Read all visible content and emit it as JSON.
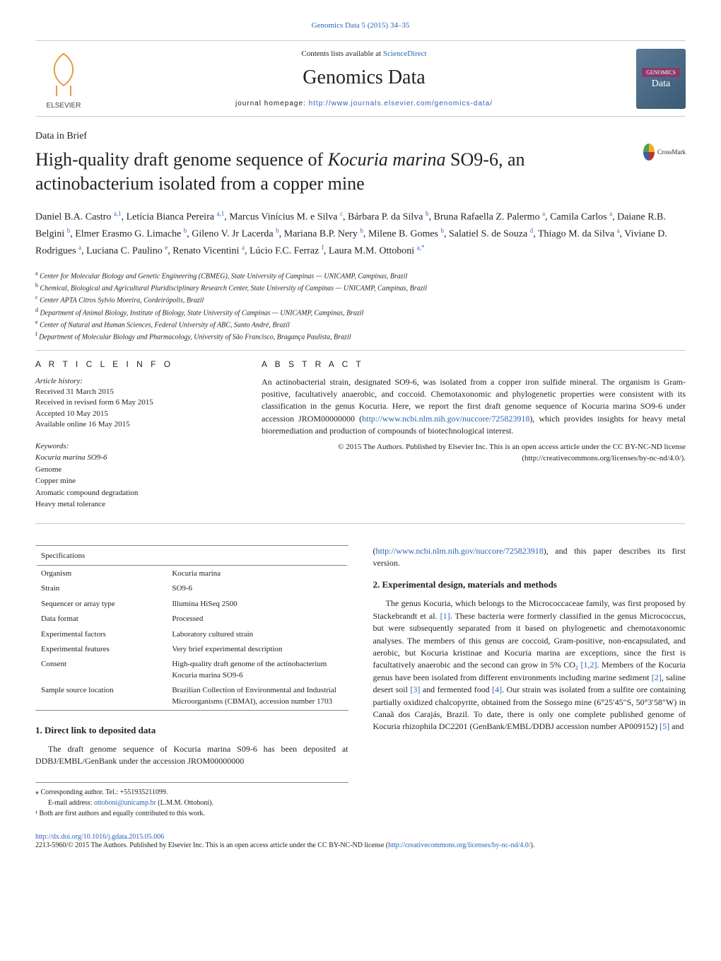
{
  "journal_ref": "Genomics Data 5 (2015) 34–35",
  "header": {
    "contents_prefix": "Contents lists available at ",
    "contents_link": "ScienceDirect",
    "journal_name": "Genomics Data",
    "homepage_prefix": "journal homepage: ",
    "homepage_url": "http://www.journals.elsevier.com/genomics-data/",
    "badge_top": "GENOMICS",
    "badge_bottom": "Data",
    "crossmark_label": "CrossMark"
  },
  "elsevier_colors": {
    "tree": "#e89b3f",
    "text": "#404248"
  },
  "article": {
    "type": "Data in Brief",
    "title_pre": "High-quality draft genome sequence of ",
    "title_species": "Kocuria marina",
    "title_post": " SO9-6, an actinobacterium isolated from a copper mine"
  },
  "authors_html": "Daniel B.A. Castro <sup>a,1</sup>, Letícia Bianca Pereira <sup>a,1</sup>, Marcus Vinícius M. e Silva <sup>c</sup>, Bárbara P. da Silva <sup>b</sup>, Bruna Rafaella Z. Palermo <sup>a</sup>, Camila Carlos <sup>a</sup>, Daiane R.B. Belgini <sup>b</sup>, Elmer Erasmo G. Limache <sup>b</sup>, Gileno V. Jr Lacerda <sup>b</sup>, Mariana B.P. Nery <sup>b</sup>, Milene B. Gomes <sup>b</sup>, Salatiel S. de Souza <sup>d</sup>, Thiago M. da Silva <sup>a</sup>, Viviane D. Rodrigues <sup>a</sup>, Luciana C. Paulino <sup>e</sup>, Renato Vicentini <sup>a</sup>, Lúcio F.C. Ferraz <sup>f</sup>, Laura M.M. Ottoboni <sup>a,*</sup>",
  "affiliations": [
    {
      "sup": "a",
      "text": "Center for Molecular Biology and Genetic Engineering (CBMEG), State University of Campinas — UNICAMP, Campinas, Brazil"
    },
    {
      "sup": "b",
      "text": "Chemical, Biological and Agricultural Pluridisciplinary Research Center, State University of Campinas — UNICAMP, Campinas, Brazil"
    },
    {
      "sup": "c",
      "text": "Center APTA Citros Sylvio Moreira, Cordeirópolis, Brazil"
    },
    {
      "sup": "d",
      "text": "Department of Animal Biology, Institute of Biology, State University of Campinas — UNICAMP, Campinas, Brazil"
    },
    {
      "sup": "e",
      "text": "Center of Natural and Human Sciences, Federal University of ABC, Santo André, Brazil"
    },
    {
      "sup": "f",
      "text": "Department of Molecular Biology and Pharmacology, University of São Francisco, Bragança Paulista, Brazil"
    }
  ],
  "info": {
    "label": "A R T I C L E   I N F O",
    "history_header": "Article history:",
    "history": [
      "Received 31 March 2015",
      "Received in revised form 6 May 2015",
      "Accepted 10 May 2015",
      "Available online 16 May 2015"
    ],
    "keywords_header": "Keywords:",
    "keywords": [
      "Kocuria marina SO9-6",
      "Genome",
      "Copper mine",
      "Aromatic compound degradation",
      "Heavy metal tolerance"
    ]
  },
  "abstract": {
    "label": "A B S T R A C T",
    "text_pre": "An actinobacterial strain, designated SO9-6, was isolated from a copper iron sulfide mineral. The organism is Gram-positive, facultatively anaerobic, and coccoid. Chemotaxonomic and phylogenetic properties were consistent with its classification in the genus Kocuria. Here, we report the first draft genome sequence of Kocuria marina SO9-6 under accession JROM00000000 (",
    "ncbi_url": "http://www.ncbi.nlm.nih.gov/nuccore/725823918",
    "text_post": "), which provides insights for heavy metal bioremediation and production of compounds of biotechnological interest.",
    "copyright": "© 2015 The Authors. Published by Elsevier Inc. This is an open access article under the CC BY-NC-ND license",
    "cc_url": "http://creativecommons.org/licenses/by-nc-nd/4.0/"
  },
  "specs": {
    "header": "Specifications",
    "rows": [
      [
        "Organism",
        "Kocuria marina"
      ],
      [
        "Strain",
        "SO9-6"
      ],
      [
        "Sequencer or array type",
        "Illumina HiSeq 2500"
      ],
      [
        "Data format",
        "Processed"
      ],
      [
        "Experimental factors",
        "Laboratory cultured strain"
      ],
      [
        "Experimental features",
        "Very brief experimental description"
      ],
      [
        "Consent",
        "High-quality draft genome of the actinobacterium Kocuria marina SO9-6"
      ],
      [
        "Sample source location",
        "Brazilian Collection of Environmental and Industrial Microorganisms (CBMAI), accession number 1703"
      ]
    ]
  },
  "section1": {
    "heading": "1. Direct link to deposited data",
    "text": "The draft genome sequence of Kocuria marina S09-6 has been deposited at DDBJ/EMBL/GenBank under the accession JROM00000000"
  },
  "footnotes": {
    "corr": "⁎   Corresponding author. Tel.: +551935211099.",
    "email_label": "E-mail address: ",
    "email": "ottoboni@unicamp.br",
    "email_post": " (L.M.M. Ottoboni).",
    "equal": "¹   Both are first authors and equally contributed to this work."
  },
  "right_top": {
    "text_pre": "(",
    "url": "http://www.ncbi.nlm.nih.gov/nuccore/725823918",
    "text_post": "), and this paper describes its first version."
  },
  "section2": {
    "heading": "2. Experimental design, materials and methods",
    "p1_pre": "The genus Kocuria, which belongs to the Micrococcaceae family, was first proposed by Stackebrandt et al. ",
    "ref1": "[1]",
    "p1_mid1": ". These bacteria were formerly classified in the genus Micrococcus, but were subsequently separated from it based on phylogenetic and chemotaxonomic analyses. The members of this genus are coccoid, Gram-positive, non-encapsulated, and aerobic, but Kocuria kristinae and Kocuria marina are exceptions, since the first is facultatively anaerobic and the second can grow in 5% CO₂ ",
    "ref12": "[1,2]",
    "p1_mid2": ". Members of the Kocuria genus have been isolated from different environments including marine sediment ",
    "ref2": "[2]",
    "p1_mid3": ", saline desert soil ",
    "ref3": "[3]",
    "p1_mid4": " and fermented food ",
    "ref4": "[4]",
    "p1_mid5": ". Our strain was isolated from a sulfite ore containing partially oxidized chalcopyrite, obtained from the Sossego mine (6°25′45″S, 50°3′58″W) in Canaã dos Carajás, Brazil. To date, there is only one complete published genome of Kocuria rhizophila DC2201 (GenBank/EMBL/DDBJ accession number AP009152) ",
    "ref5": "[5]",
    "p1_end": " and"
  },
  "doi": {
    "url": "http://dx.doi.org/10.1016/j.gdata.2015.05.006",
    "license_pre": "2213-5960/© 2015 The Authors. Published by Elsevier Inc. This is an open access article under the CC BY-NC-ND license (",
    "cc_url": "http://creativecommons.org/licenses/by-nc-nd/4.0/",
    "license_post": ")."
  }
}
